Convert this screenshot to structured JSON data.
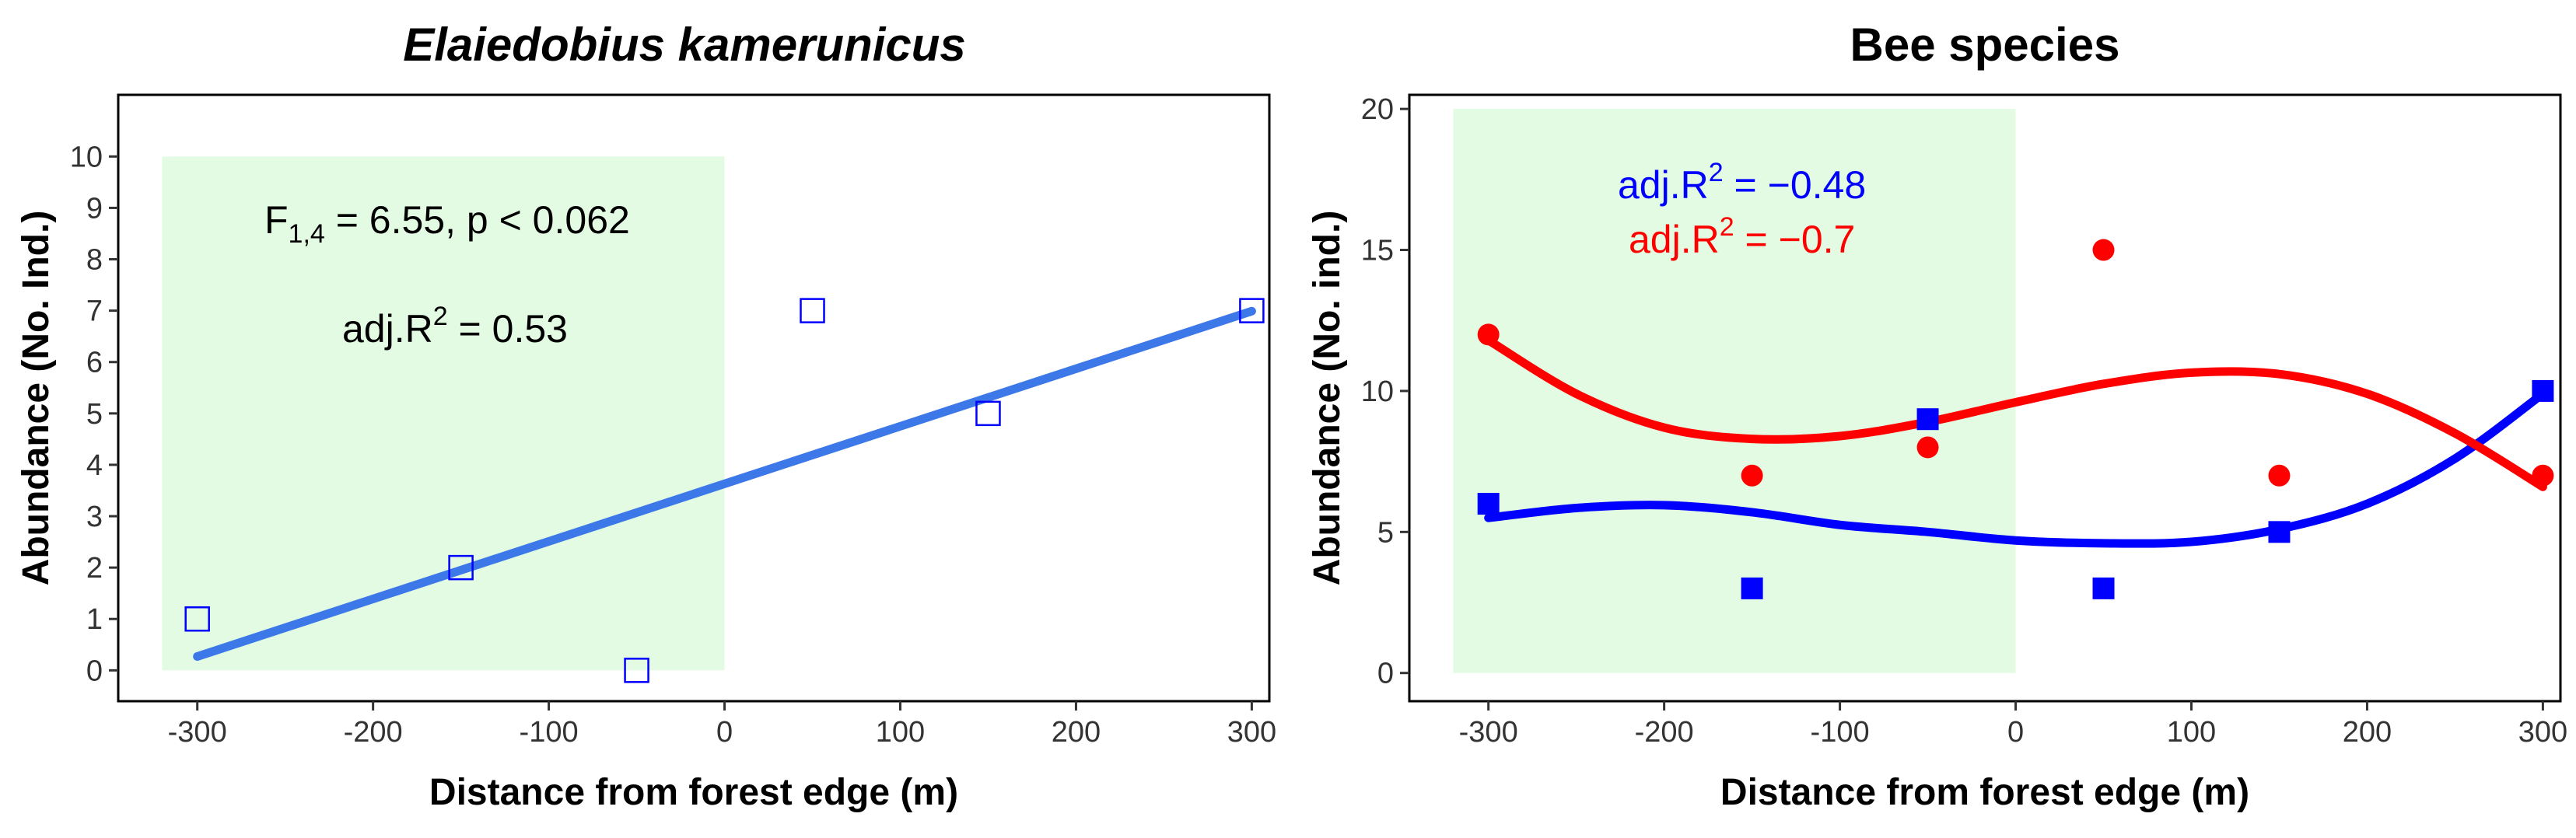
{
  "chart_data": [
    {
      "type": "scatter",
      "title": "Elaiedobius kamerunicus",
      "xlabel": "Distance from forest edge (m)",
      "ylabel": "Abundance (No. Ind.)",
      "xlim": [
        -345,
        310
      ],
      "ylim": [
        -0.6,
        11.2
      ],
      "xticks": [
        -300,
        -200,
        -100,
        0,
        100,
        200,
        300
      ],
      "yticks": [
        0,
        1,
        2,
        3,
        4,
        5,
        6,
        7,
        8,
        9,
        10
      ],
      "shaded_region": {
        "x": [
          -320,
          0
        ],
        "y": [
          0,
          10
        ],
        "color": "#e3fbe3"
      },
      "series": [
        {
          "name": "E. kamerunicus",
          "color": "#0000ff",
          "marker": "open-square",
          "points": [
            [
              -300,
              1
            ],
            [
              -150,
              2
            ],
            [
              -50,
              0
            ],
            [
              50,
              7
            ],
            [
              150,
              5
            ],
            [
              300,
              7
            ]
          ],
          "fit": {
            "type": "linear",
            "color": "#3c78e8",
            "x_range": [
              -300,
              300
            ],
            "intercept": 3.63,
            "slope": 0.0112
          }
        }
      ],
      "annotations": [
        {
          "pre": "F",
          "sub": "1,4",
          "post": " = 6.55, p < 0.062",
          "color": "#000000"
        },
        {
          "pre": "adj.R",
          "sup": "2",
          "post": " = 0.53",
          "color": "#000000"
        }
      ]
    },
    {
      "type": "scatter",
      "title": "Bee species",
      "xlabel": "Distance from forest edge (m)",
      "ylabel": "Abundance (No. ind.)",
      "xlim": [
        -345,
        310
      ],
      "ylim": [
        -1,
        20.5
      ],
      "xticks": [
        -300,
        -200,
        -100,
        0,
        100,
        200,
        300
      ],
      "yticks": [
        0,
        5,
        10,
        15,
        20
      ],
      "shaded_region": {
        "x": [
          -320,
          0
        ],
        "y": [
          0,
          20
        ],
        "color": "#e3fbe3"
      },
      "series": [
        {
          "name": "blue series",
          "color": "#0000ff",
          "marker": "filled-square",
          "points": [
            [
              -300,
              6
            ],
            [
              -150,
              3
            ],
            [
              -50,
              9
            ],
            [
              50,
              3
            ],
            [
              150,
              5
            ],
            [
              300,
              10
            ]
          ],
          "fit_points": [
            [
              -300,
              5.5
            ],
            [
              -250,
              5.85
            ],
            [
              -200,
              5.95
            ],
            [
              -150,
              5.7
            ],
            [
              -100,
              5.25
            ],
            [
              -50,
              5.0
            ],
            [
              0,
              4.7
            ],
            [
              50,
              4.6
            ],
            [
              100,
              4.65
            ],
            [
              150,
              5.1
            ],
            [
              200,
              6.0
            ],
            [
              250,
              7.6
            ],
            [
              300,
              9.9
            ]
          ]
        },
        {
          "name": "red series",
          "color": "#ff0000",
          "marker": "filled-circle",
          "points": [
            [
              -300,
              12
            ],
            [
              -150,
              7
            ],
            [
              -50,
              8
            ],
            [
              50,
              15
            ],
            [
              150,
              7
            ],
            [
              300,
              7
            ]
          ],
          "fit_points": [
            [
              -300,
              11.8
            ],
            [
              -250,
              9.9
            ],
            [
              -200,
              8.7
            ],
            [
              -150,
              8.3
            ],
            [
              -100,
              8.4
            ],
            [
              -50,
              8.9
            ],
            [
              0,
              9.6
            ],
            [
              50,
              10.25
            ],
            [
              100,
              10.65
            ],
            [
              150,
              10.6
            ],
            [
              200,
              9.9
            ],
            [
              250,
              8.5
            ],
            [
              300,
              6.6
            ]
          ]
        }
      ],
      "annotations": [
        {
          "pre": "adj.R",
          "sup": "2",
          "post": " = −0.48",
          "color": "#0000ff"
        },
        {
          "pre": "adj.R",
          "sup": "2",
          "post": " = −0.7",
          "color": "#ff0000"
        }
      ]
    }
  ]
}
